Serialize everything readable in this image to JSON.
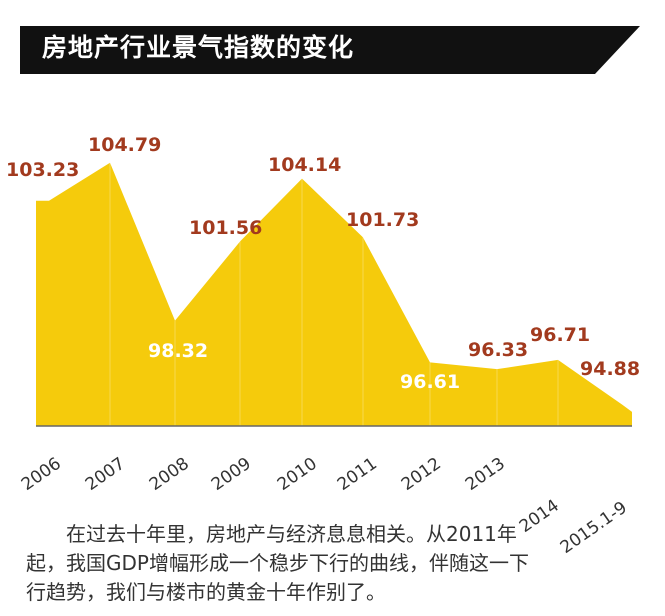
{
  "header": {
    "title": "房地产行业景气指数的变化"
  },
  "colors": {
    "fill": "#f5cb0c",
    "value_dark": "#a23a1e",
    "value_light": "#ffffff",
    "banner": "#111111"
  },
  "chart_data": {
    "type": "area",
    "title": "房地产行业景气指数的变化",
    "categories": [
      "2006",
      "2007",
      "2008",
      "2009",
      "2010",
      "2011",
      "2012",
      "2013",
      "2014",
      "2015.1-9"
    ],
    "values": [
      103.23,
      104.79,
      98.32,
      101.56,
      104.14,
      101.73,
      96.61,
      96.33,
      96.71,
      94.88
    ],
    "value_labels": [
      "103.23",
      "104.79",
      "98.32",
      "101.56",
      "104.14",
      "101.73",
      "96.61",
      "96.33",
      "96.71",
      "94.88"
    ],
    "tick_labels": [
      "2006",
      "2007",
      "2008",
      "2009",
      "2010",
      "2011",
      "2012",
      "2013",
      "2014",
      "2015.1-9"
    ],
    "grid": false,
    "legend": "none"
  },
  "caption": {
    "line1": "在过去十年里，房地产与经济息息相关。从2011年",
    "line2": "起，我国GDP增幅形成一个稳步下行的曲线，伴随这一下",
    "line3": "行趋势，我们与楼市的黄金十年作别了。"
  }
}
